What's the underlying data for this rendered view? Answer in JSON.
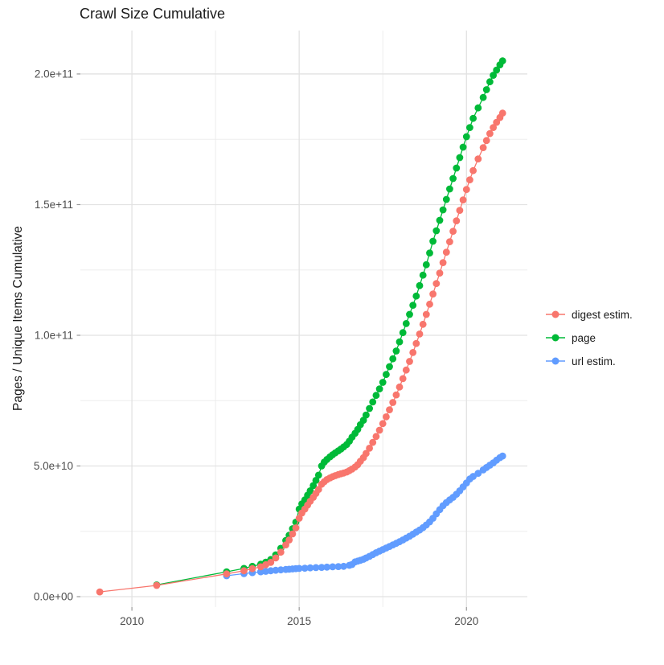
{
  "title": "Crawl Size Cumulative",
  "y_axis": {
    "label": "Pages / Unique Items Cumulative",
    "ticks": [
      "0.0e+00",
      "5.0e+10",
      "1.0e+11",
      "1.5e+11",
      "2.0e+11"
    ]
  },
  "x_axis": {
    "ticks": [
      "2010",
      "2015",
      "2020"
    ]
  },
  "legend": [
    {
      "label": "digest estim.",
      "color": "#F8766D"
    },
    {
      "label": "page",
      "color": "#00BA38"
    },
    {
      "label": "url estim.",
      "color": "#619CFF"
    }
  ],
  "colors": {
    "grid_major": "#E2E2E2",
    "grid_minor": "#EDEDED",
    "tick_mark": "#999999",
    "tick_text": "#4D4D4D"
  },
  "chart_data": {
    "type": "scatter",
    "title": "Crawl Size Cumulative",
    "xlabel": "",
    "ylabel": "Pages / Unique Items Cumulative",
    "grid": true,
    "legend_position": "right",
    "xlim": [
      2008.46,
      2021.82
    ],
    "ylim_e9": [
      -4,
      216.6
    ],
    "x_major_ticks": [
      2010,
      2015,
      2020
    ],
    "x_minor_ticks": [
      2012.5,
      2017.5
    ],
    "y_major_ticks_e9": [
      0,
      50,
      100,
      150,
      200
    ],
    "y_minor_ticks_e9": [
      25,
      75,
      125,
      175
    ],
    "y_tick_labels": [
      "0.0e+00",
      "5.0e+10",
      "1.0e+11",
      "1.5e+11",
      "2.0e+11"
    ],
    "value_unit": "1e9 pages / unique items",
    "series": [
      {
        "name": "page",
        "color": "#00BA38",
        "points": [
          [
            2010.74,
            4.5
          ],
          [
            2012.83,
            9.5
          ],
          [
            2013.35,
            10.8
          ],
          [
            2013.6,
            11.6
          ],
          [
            2013.85,
            12.4
          ],
          [
            2014.0,
            13.2
          ],
          [
            2014.15,
            14.2
          ],
          [
            2014.3,
            16.0
          ],
          [
            2014.45,
            18.5
          ],
          [
            2014.6,
            21.5
          ],
          [
            2014.7,
            23.5
          ],
          [
            2014.8,
            26.0
          ],
          [
            2014.9,
            28.5
          ],
          [
            2015.0,
            33.5
          ],
          [
            2015.08,
            35.5
          ],
          [
            2015.17,
            37.0
          ],
          [
            2015.25,
            38.8
          ],
          [
            2015.33,
            40.5
          ],
          [
            2015.42,
            42.5
          ],
          [
            2015.5,
            44.5
          ],
          [
            2015.58,
            46.5
          ],
          [
            2015.67,
            50.0
          ],
          [
            2015.75,
            51.5
          ],
          [
            2015.83,
            52.5
          ],
          [
            2015.92,
            53.5
          ],
          [
            2016.0,
            54.3
          ],
          [
            2016.08,
            55.0
          ],
          [
            2016.17,
            55.8
          ],
          [
            2016.25,
            56.5
          ],
          [
            2016.33,
            57.3
          ],
          [
            2016.42,
            58.2
          ],
          [
            2016.5,
            59.5
          ],
          [
            2016.58,
            61.0
          ],
          [
            2016.67,
            62.5
          ],
          [
            2016.75,
            64.0
          ],
          [
            2016.83,
            65.8
          ],
          [
            2016.92,
            67.5
          ],
          [
            2017.0,
            69.5
          ],
          [
            2017.1,
            72.0
          ],
          [
            2017.2,
            74.5
          ],
          [
            2017.3,
            77.0
          ],
          [
            2017.4,
            79.5
          ],
          [
            2017.5,
            82.0
          ],
          [
            2017.6,
            85.0
          ],
          [
            2017.7,
            88.0
          ],
          [
            2017.8,
            91.0
          ],
          [
            2017.9,
            94.0
          ],
          [
            2018.0,
            97.5
          ],
          [
            2018.1,
            101.0
          ],
          [
            2018.2,
            104.5
          ],
          [
            2018.3,
            108.0
          ],
          [
            2018.4,
            111.5
          ],
          [
            2018.5,
            115.0
          ],
          [
            2018.6,
            119.0
          ],
          [
            2018.7,
            123.0
          ],
          [
            2018.8,
            127.0
          ],
          [
            2018.9,
            131.5
          ],
          [
            2019.0,
            136.0
          ],
          [
            2019.1,
            140.0
          ],
          [
            2019.2,
            144.0
          ],
          [
            2019.3,
            148.0
          ],
          [
            2019.4,
            152.0
          ],
          [
            2019.5,
            156.0
          ],
          [
            2019.6,
            160.0
          ],
          [
            2019.7,
            164.0
          ],
          [
            2019.8,
            168.0
          ],
          [
            2019.9,
            172.0
          ],
          [
            2020.0,
            176.0
          ],
          [
            2020.1,
            179.5
          ],
          [
            2020.2,
            183.0
          ],
          [
            2020.35,
            187.0
          ],
          [
            2020.5,
            191.0
          ],
          [
            2020.6,
            194.0
          ],
          [
            2020.7,
            197.0
          ],
          [
            2020.8,
            199.5
          ],
          [
            2020.9,
            201.5
          ],
          [
            2021.0,
            203.5
          ],
          [
            2021.08,
            205.0
          ]
        ]
      },
      {
        "name": "url estim.",
        "color": "#619CFF",
        "points": [
          [
            2012.83,
            8.0
          ],
          [
            2013.35,
            8.8
          ],
          [
            2013.6,
            9.2
          ],
          [
            2013.85,
            9.5
          ],
          [
            2014.0,
            9.7
          ],
          [
            2014.15,
            9.9
          ],
          [
            2014.3,
            10.1
          ],
          [
            2014.45,
            10.25
          ],
          [
            2014.6,
            10.4
          ],
          [
            2014.7,
            10.5
          ],
          [
            2014.8,
            10.6
          ],
          [
            2014.9,
            10.7
          ],
          [
            2015.0,
            10.8
          ],
          [
            2015.17,
            10.9
          ],
          [
            2015.33,
            11.0
          ],
          [
            2015.5,
            11.1
          ],
          [
            2015.67,
            11.2
          ],
          [
            2015.83,
            11.3
          ],
          [
            2016.0,
            11.4
          ],
          [
            2016.17,
            11.5
          ],
          [
            2016.33,
            11.6
          ],
          [
            2016.5,
            12.0
          ],
          [
            2016.58,
            12.3
          ],
          [
            2016.67,
            13.3
          ],
          [
            2016.75,
            13.6
          ],
          [
            2016.83,
            13.9
          ],
          [
            2016.92,
            14.3
          ],
          [
            2017.0,
            14.8
          ],
          [
            2017.1,
            15.4
          ],
          [
            2017.2,
            16.1
          ],
          [
            2017.3,
            16.8
          ],
          [
            2017.4,
            17.4
          ],
          [
            2017.5,
            18.0
          ],
          [
            2017.6,
            18.6
          ],
          [
            2017.7,
            19.2
          ],
          [
            2017.8,
            19.8
          ],
          [
            2017.9,
            20.4
          ],
          [
            2018.0,
            21.0
          ],
          [
            2018.1,
            21.7
          ],
          [
            2018.2,
            22.4
          ],
          [
            2018.3,
            23.1
          ],
          [
            2018.4,
            23.9
          ],
          [
            2018.5,
            24.7
          ],
          [
            2018.6,
            25.5
          ],
          [
            2018.7,
            26.4
          ],
          [
            2018.8,
            27.4
          ],
          [
            2018.9,
            28.6
          ],
          [
            2019.0,
            30.0
          ],
          [
            2019.1,
            31.7
          ],
          [
            2019.2,
            33.3
          ],
          [
            2019.3,
            34.8
          ],
          [
            2019.4,
            36.0
          ],
          [
            2019.5,
            37.0
          ],
          [
            2019.6,
            38.0
          ],
          [
            2019.7,
            39.2
          ],
          [
            2019.8,
            40.5
          ],
          [
            2019.9,
            42.0
          ],
          [
            2020.0,
            43.5
          ],
          [
            2020.1,
            45.0
          ],
          [
            2020.2,
            46.0
          ],
          [
            2020.35,
            47.2
          ],
          [
            2020.5,
            48.5
          ],
          [
            2020.6,
            49.4
          ],
          [
            2020.7,
            50.3
          ],
          [
            2020.8,
            51.2
          ],
          [
            2020.9,
            52.2
          ],
          [
            2021.0,
            53.2
          ],
          [
            2021.08,
            53.8
          ]
        ]
      },
      {
        "name": "digest estim.",
        "color": "#F8766D",
        "points": [
          [
            2009.04,
            1.8
          ],
          [
            2010.74,
            4.3
          ],
          [
            2012.83,
            8.7
          ],
          [
            2013.35,
            9.9
          ],
          [
            2013.6,
            10.7
          ],
          [
            2013.85,
            11.4
          ],
          [
            2014.0,
            12.2
          ],
          [
            2014.15,
            13.1
          ],
          [
            2014.3,
            14.8
          ],
          [
            2014.45,
            17.0
          ],
          [
            2014.6,
            19.8
          ],
          [
            2014.7,
            21.7
          ],
          [
            2014.8,
            24.0
          ],
          [
            2014.9,
            26.3
          ],
          [
            2015.0,
            30.0
          ],
          [
            2015.08,
            32.0
          ],
          [
            2015.17,
            33.5
          ],
          [
            2015.25,
            35.0
          ],
          [
            2015.33,
            36.5
          ],
          [
            2015.42,
            38.0
          ],
          [
            2015.5,
            39.5
          ],
          [
            2015.58,
            41.0
          ],
          [
            2015.67,
            43.0
          ],
          [
            2015.75,
            44.0
          ],
          [
            2015.83,
            44.8
          ],
          [
            2015.92,
            45.4
          ],
          [
            2016.0,
            45.9
          ],
          [
            2016.08,
            46.3
          ],
          [
            2016.17,
            46.7
          ],
          [
            2016.25,
            47.0
          ],
          [
            2016.33,
            47.3
          ],
          [
            2016.42,
            47.7
          ],
          [
            2016.5,
            48.2
          ],
          [
            2016.58,
            48.8
          ],
          [
            2016.67,
            49.6
          ],
          [
            2016.75,
            50.5
          ],
          [
            2016.83,
            51.8
          ],
          [
            2016.92,
            53.2
          ],
          [
            2017.0,
            54.8
          ],
          [
            2017.1,
            56.8
          ],
          [
            2017.2,
            59.0
          ],
          [
            2017.3,
            61.3
          ],
          [
            2017.4,
            63.7
          ],
          [
            2017.5,
            66.2
          ],
          [
            2017.6,
            68.8
          ],
          [
            2017.7,
            71.5
          ],
          [
            2017.8,
            74.3
          ],
          [
            2017.9,
            77.2
          ],
          [
            2018.0,
            80.2
          ],
          [
            2018.1,
            83.4
          ],
          [
            2018.2,
            86.7
          ],
          [
            2018.3,
            90.0
          ],
          [
            2018.4,
            93.4
          ],
          [
            2018.5,
            96.9
          ],
          [
            2018.6,
            100.5
          ],
          [
            2018.7,
            104.2
          ],
          [
            2018.8,
            108.0
          ],
          [
            2018.9,
            111.9
          ],
          [
            2019.0,
            115.8
          ],
          [
            2019.1,
            119.8
          ],
          [
            2019.2,
            123.8
          ],
          [
            2019.3,
            127.8
          ],
          [
            2019.4,
            131.8
          ],
          [
            2019.5,
            135.8
          ],
          [
            2019.6,
            139.8
          ],
          [
            2019.7,
            143.8
          ],
          [
            2019.8,
            147.8
          ],
          [
            2019.9,
            151.8
          ],
          [
            2020.0,
            155.8
          ],
          [
            2020.1,
            159.5
          ],
          [
            2020.2,
            163.0
          ],
          [
            2020.35,
            167.5
          ],
          [
            2020.5,
            171.8
          ],
          [
            2020.6,
            174.5
          ],
          [
            2020.7,
            177.2
          ],
          [
            2020.8,
            179.5
          ],
          [
            2020.9,
            181.5
          ],
          [
            2021.0,
            183.3
          ],
          [
            2021.08,
            185.0
          ]
        ]
      }
    ]
  }
}
